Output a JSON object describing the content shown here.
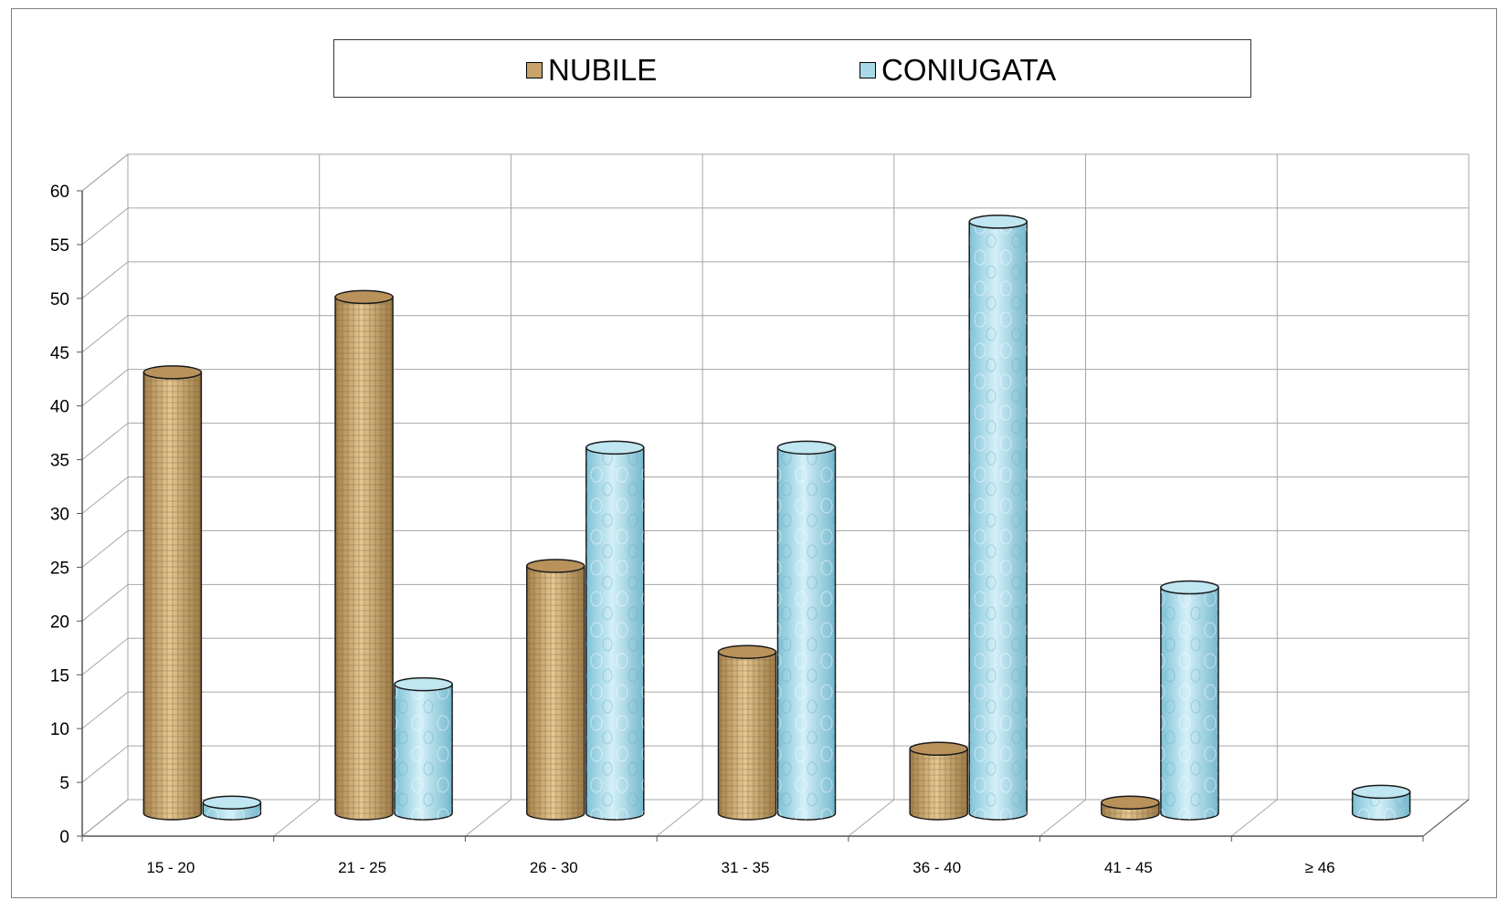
{
  "chart_data": {
    "type": "bar",
    "style": "3d-cylinder",
    "categories": [
      "15 - 20",
      "21 - 25",
      "26 - 30",
      "31 - 35",
      "36 - 40",
      "41 - 45",
      "≥ 46"
    ],
    "series": [
      {
        "name": "NUBILE",
        "values": [
          41,
          48,
          23,
          15,
          6,
          1,
          0
        ],
        "color": "#c9a46a"
      },
      {
        "name": "CONIUGATA",
        "values": [
          1,
          12,
          34,
          34,
          55,
          21,
          2
        ],
        "color": "#a9d9e8"
      }
    ],
    "yticks": [
      "0",
      "5",
      "10",
      "15",
      "20",
      "25",
      "30",
      "35",
      "40",
      "45",
      "50",
      "55",
      "60"
    ],
    "ylim": [
      0,
      60
    ],
    "grid": true,
    "legend_position": "top"
  }
}
